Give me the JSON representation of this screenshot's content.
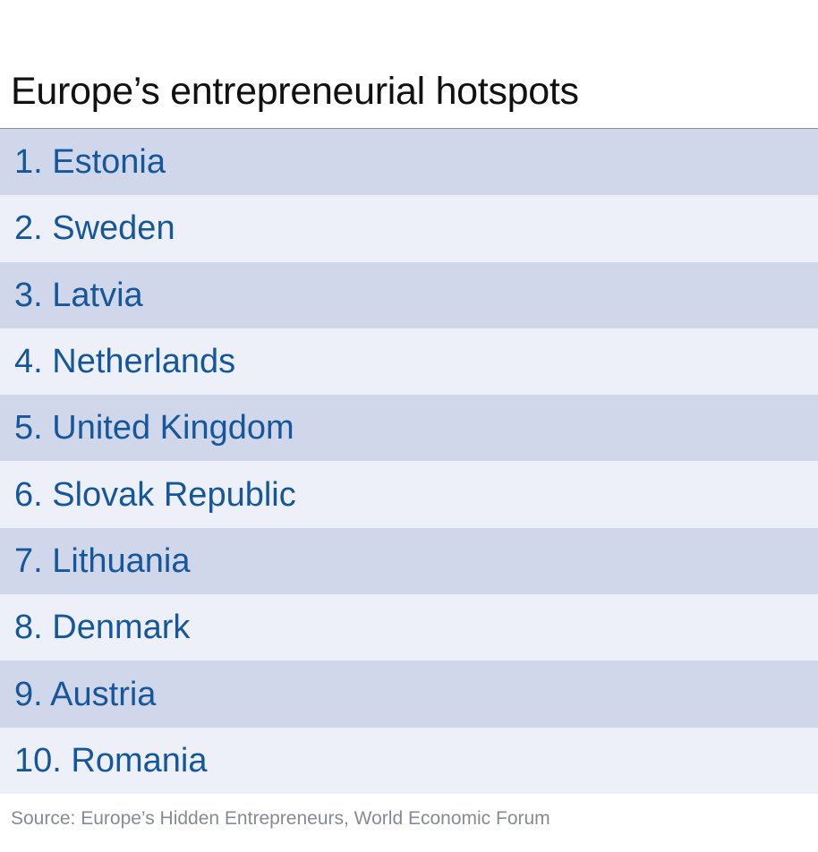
{
  "chart_data": {
    "type": "table",
    "title": "Europe’s entrepreneurial hotspots",
    "rows": [
      "1. Estonia",
      "2. Sweden",
      "3. Latvia",
      "4. Netherlands",
      "5. United Kingdom",
      "6. Slovak Republic",
      "7. Lithuania",
      "8. Denmark",
      "9. Austria",
      "10. Romania"
    ],
    "source": "Source: Europe’s Hidden Entrepreneurs, World Economic Forum",
    "colors": {
      "row_dark": "#d1d7ea",
      "row_light": "#edf0f8",
      "label_text": "#16579b",
      "title_text": "#111111",
      "source_text": "#868b93"
    }
  }
}
